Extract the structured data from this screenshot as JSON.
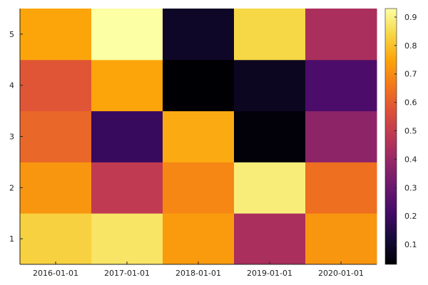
{
  "chart_data": {
    "type": "heatmap",
    "x_labels": [
      "2016-01-01",
      "2017-01-01",
      "2018-01-01",
      "2019-01-01",
      "2020-01-01"
    ],
    "y_labels": [
      "1",
      "2",
      "3",
      "4",
      "5"
    ],
    "values": [
      [
        0.83,
        0.87,
        0.73,
        0.44,
        0.72
      ],
      [
        0.72,
        0.49,
        0.69,
        0.89,
        0.64
      ],
      [
        0.62,
        0.19,
        0.76,
        0.04,
        0.38
      ],
      [
        0.58,
        0.75,
        0.03,
        0.08,
        0.23
      ],
      [
        0.75,
        0.93,
        0.09,
        0.84,
        0.44
      ]
    ],
    "colormap": "inferno",
    "colorbar": {
      "min": 0.03,
      "max": 0.93,
      "ticks": [
        "0.1",
        "0.2",
        "0.3",
        "0.4",
        "0.5",
        "0.6",
        "0.7",
        "0.8",
        "0.9"
      ]
    },
    "grid": false,
    "legend": "none",
    "colorbar_position": "right"
  }
}
